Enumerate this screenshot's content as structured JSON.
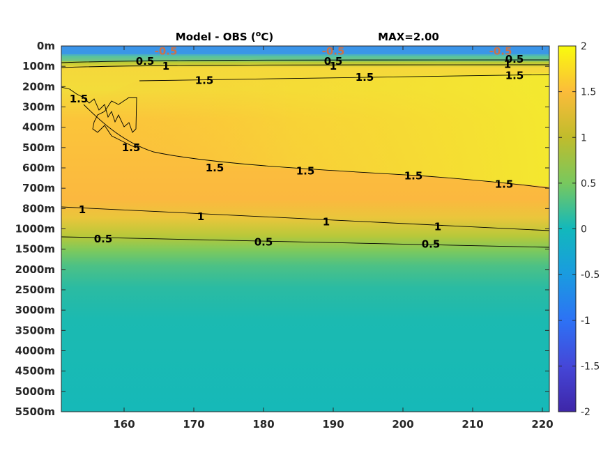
{
  "chart_data": {
    "type": "heatmap",
    "title": "Model - OBS (",
    "title_unit_sup": "o",
    "title_unit_end": "C)",
    "max_label": "MAX=2.00",
    "x_ticks": [
      160,
      170,
      180,
      190,
      200,
      210,
      220
    ],
    "x_range": [
      151,
      221
    ],
    "y_ticks": [
      "0m",
      "100m",
      "200m",
      "300m",
      "400m",
      "500m",
      "600m",
      "700m",
      "800m",
      "1000m",
      "1500m",
      "2000m",
      "2500m",
      "3000m",
      "3500m",
      "4000m",
      "4500m",
      "5000m",
      "5500m"
    ],
    "colorbar": {
      "ticks": [
        "2",
        "1.5",
        "1",
        "0.5",
        "0",
        "-0.5",
        "-1",
        "-1.5",
        "-2"
      ],
      "range": [
        -2,
        2
      ],
      "colormap": "parula"
    },
    "contours": [
      {
        "level": "-0.5",
        "depth": "0m"
      },
      {
        "level": "0.5",
        "depth": "100m"
      },
      {
        "level": "1",
        "depth": "100m"
      },
      {
        "level": "1.5",
        "depth": "200m"
      },
      {
        "level": "1.5",
        "depth": "600m-700m"
      },
      {
        "level": "1",
        "depth": "800m-1000m"
      },
      {
        "level": "0.5",
        "depth": "1000m-1500m"
      }
    ],
    "contour_labels": [
      {
        "text": "-0.5",
        "x": 166,
        "y_index": 0.25
      },
      {
        "text": "-0.5",
        "x": 190,
        "y_index": 0.25
      },
      {
        "text": "-0.5",
        "x": 214,
        "y_index": 0.25
      },
      {
        "text": "0.5",
        "x": 163,
        "y_index": 0.75
      },
      {
        "text": "1",
        "x": 166,
        "y_index": 1.0
      },
      {
        "text": "0.5",
        "x": 190,
        "y_index": 0.75
      },
      {
        "text": "1",
        "x": 190,
        "y_index": 1.0
      },
      {
        "text": "0.5",
        "x": 216,
        "y_index": 0.65
      },
      {
        "text": "1",
        "x": 215,
        "y_index": 0.9
      },
      {
        "text": "1.5",
        "x": 171.5,
        "y_index": 1.7
      },
      {
        "text": "1.5",
        "x": 194.5,
        "y_index": 1.55
      },
      {
        "text": "1.5",
        "x": 216,
        "y_index": 1.45
      },
      {
        "text": "1.5",
        "x": 153.5,
        "y_index": 2.6
      },
      {
        "text": "1.5",
        "x": 173,
        "y_index": 6.0
      },
      {
        "text": "1.5",
        "x": 186,
        "y_index": 6.15
      },
      {
        "text": "1.5",
        "x": 201.5,
        "y_index": 6.4
      },
      {
        "text": "1.5",
        "x": 214.5,
        "y_index": 6.8
      },
      {
        "text": "1.5",
        "x": 161,
        "y_index": 5.0
      },
      {
        "text": "1",
        "x": 154,
        "y_index": 8.05
      },
      {
        "text": "1",
        "x": 171,
        "y_index": 8.4
      },
      {
        "text": "1",
        "x": 189,
        "y_index": 8.65
      },
      {
        "text": "1",
        "x": 205,
        "y_index": 8.9
      },
      {
        "text": "0.5",
        "x": 157,
        "y_index": 9.5
      },
      {
        "text": "0.5",
        "x": 180,
        "y_index": 9.65
      },
      {
        "text": "0.5",
        "x": 204,
        "y_index": 9.75
      }
    ]
  }
}
